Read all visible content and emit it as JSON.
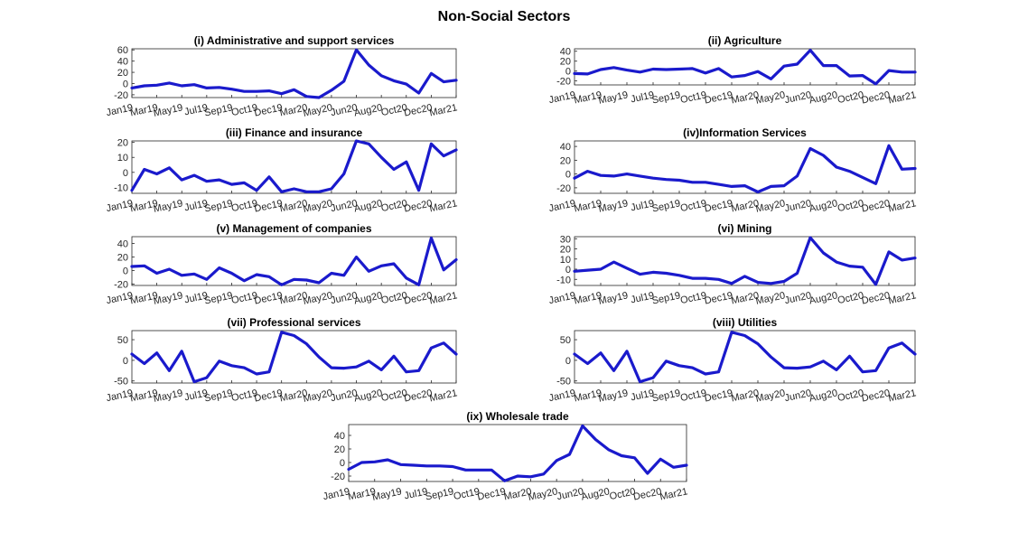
{
  "figure": {
    "title": "Non-Social Sectors"
  },
  "chart_data": [
    {
      "type": "line",
      "title": "(i) Administrative and support services",
      "color": "#1a1acc",
      "ylim": [
        -25,
        62
      ],
      "yticks": [
        -20,
        0,
        20,
        40,
        60
      ],
      "x_ticks": [
        "Jan19",
        "Mar19",
        "May19",
        "Jul19",
        "Sep19",
        "Oct19",
        "Dec19",
        "Mar20",
        "May20",
        "Jun20",
        "Aug20",
        "Oct20",
        "Dec20",
        "Mar21"
      ],
      "values": [
        -8,
        -4,
        -3,
        1,
        -4,
        -2,
        -8,
        -7,
        -10,
        -14,
        -14,
        -13,
        -18,
        -11,
        -23,
        -25,
        -12,
        4,
        60,
        33,
        14,
        5,
        -1,
        -17,
        18,
        3,
        6
      ]
    },
    {
      "type": "line",
      "title": "(ii) Agriculture",
      "color": "#1a1acc",
      "ylim": [
        -28,
        45
      ],
      "yticks": [
        -20,
        0,
        20,
        40
      ],
      "x_ticks": [
        "Jan19",
        "Mar19",
        "May19",
        "Jul19",
        "Sep19",
        "Oct19",
        "Dec19",
        "Mar20",
        "May20",
        "Jun20",
        "Aug20",
        "Oct20",
        "Dec20",
        "Mar21"
      ],
      "values": [
        -5,
        -6,
        3,
        7,
        2,
        -2,
        4,
        3,
        4,
        5,
        -4,
        5,
        -12,
        -9,
        -1,
        -16,
        10,
        14,
        42,
        11,
        11,
        -10,
        -9,
        -26,
        1,
        -2,
        -2
      ]
    },
    {
      "type": "line",
      "title": "(iii) Finance and insurance",
      "color": "#1a1acc",
      "ylim": [
        -14,
        21
      ],
      "yticks": [
        -10,
        0,
        10,
        20
      ],
      "x_ticks": [
        "Jan19",
        "Mar19",
        "May19",
        "Jul19",
        "Sep19",
        "Oct19",
        "Dec19",
        "Mar20",
        "May20",
        "Jun20",
        "Aug20",
        "Oct20",
        "Dec20",
        "Mar21"
      ],
      "values": [
        -12,
        2,
        -1,
        3,
        -5,
        -2,
        -6,
        -5,
        -8,
        -7,
        -12,
        -3,
        -13,
        -11,
        -13,
        -13,
        -11,
        -1,
        21,
        19,
        10,
        2,
        7,
        -12,
        19,
        11,
        15
      ]
    },
    {
      "type": "line",
      "title": "(iv)Information Services",
      "color": "#1a1acc",
      "ylim": [
        -28,
        48
      ],
      "yticks": [
        -20,
        0,
        20,
        40
      ],
      "x_ticks": [
        "Jan19",
        "Mar19",
        "May19",
        "Jul19",
        "Sep19",
        "Oct19",
        "Dec19",
        "Mar20",
        "May20",
        "Jun20",
        "Aug20",
        "Oct20",
        "Dec20",
        "Mar21"
      ],
      "values": [
        -6,
        4,
        -2,
        -3,
        0,
        -3,
        -6,
        -8,
        -9,
        -12,
        -12,
        -15,
        -18,
        -17,
        -26,
        -18,
        -17,
        -3,
        37,
        27,
        10,
        4,
        -5,
        -14,
        41,
        7,
        8
      ]
    },
    {
      "type": "line",
      "title": "(v) Management of companies",
      "color": "#1a1acc",
      "ylim": [
        -22,
        50
      ],
      "yticks": [
        -20,
        0,
        20,
        40
      ],
      "x_ticks": [
        "Jan19",
        "Mar19",
        "May19",
        "Jul19",
        "Sep19",
        "Oct19",
        "Dec19",
        "Mar20",
        "May20",
        "Jun20",
        "Aug20",
        "Oct20",
        "Dec20",
        "Mar21"
      ],
      "values": [
        6,
        7,
        -4,
        2,
        -7,
        -5,
        -13,
        4,
        -4,
        -15,
        -6,
        -9,
        -21,
        -13,
        -14,
        -18,
        -4,
        -7,
        20,
        -1,
        7,
        10,
        -11,
        -21,
        48,
        1,
        16
      ]
    },
    {
      "type": "line",
      "title": "(vi) Mining",
      "color": "#1a1acc",
      "ylim": [
        -16,
        32
      ],
      "yticks": [
        -10,
        0,
        10,
        20,
        30
      ],
      "x_ticks": [
        "Jan19",
        "Mar19",
        "May19",
        "Jul19",
        "Sep19",
        "Oct19",
        "Dec19",
        "Mar20",
        "May20",
        "Jun20",
        "Aug20",
        "Oct20",
        "Dec20",
        "Mar21"
      ],
      "values": [
        -2,
        -1,
        0,
        7,
        1,
        -5,
        -3,
        -4,
        -6,
        -9,
        -9,
        -10,
        -14,
        -7,
        -13,
        -14,
        -12,
        -4,
        31,
        16,
        7,
        3,
        2,
        -15,
        17,
        9,
        11
      ]
    },
    {
      "type": "line",
      "title": "(vii) Professional services",
      "color": "#1a1acc",
      "ylim": [
        -55,
        72
      ],
      "yticks": [
        -50,
        0,
        50
      ],
      "x_ticks": [
        "Jan19",
        "Mar19",
        "May19",
        "Jul19",
        "Sep19",
        "Oct19",
        "Dec19",
        "Mar20",
        "May20",
        "Jun20",
        "Aug20",
        "Oct20",
        "Dec20",
        "Mar21"
      ],
      "values": [
        15,
        -8,
        18,
        -25,
        22,
        -52,
        -42,
        -2,
        -13,
        -18,
        -33,
        -28,
        68,
        60,
        40,
        8,
        -18,
        -19,
        -16,
        -2,
        -23,
        10,
        -28,
        -25,
        30,
        42,
        15
      ]
    },
    {
      "type": "line",
      "title": "(viii) Utilities",
      "color": "#1a1acc",
      "ylim": [
        -55,
        72
      ],
      "yticks": [
        -50,
        0,
        50
      ],
      "x_ticks": [
        "Jan19",
        "Mar19",
        "May19",
        "Jul19",
        "Sep19",
        "Oct19",
        "Dec19",
        "Mar20",
        "May20",
        "Jun20",
        "Aug20",
        "Oct20",
        "Dec20",
        "Mar21"
      ],
      "values": [
        15,
        -8,
        18,
        -25,
        22,
        -52,
        -42,
        -2,
        -13,
        -18,
        -33,
        -28,
        68,
        60,
        40,
        8,
        -18,
        -19,
        -16,
        -2,
        -23,
        10,
        -28,
        -25,
        30,
        42,
        15
      ]
    },
    {
      "type": "line",
      "title": "(ix) Wholesale trade",
      "color": "#1a1acc",
      "ylim": [
        -28,
        56
      ],
      "yticks": [
        -20,
        0,
        20,
        40
      ],
      "x_ticks": [
        "Jan19",
        "Mar19",
        "May19",
        "Jul19",
        "Sep19",
        "Oct19",
        "Dec19",
        "Mar20",
        "May20",
        "Jun20",
        "Aug20",
        "Oct20",
        "Dec20",
        "Mar21"
      ],
      "values": [
        -10,
        0,
        1,
        4,
        -3,
        -4,
        -5,
        -5,
        -6,
        -11,
        -11,
        -11,
        -27,
        -20,
        -21,
        -17,
        3,
        12,
        54,
        34,
        19,
        10,
        7,
        -16,
        5,
        -7,
        -4
      ]
    }
  ]
}
